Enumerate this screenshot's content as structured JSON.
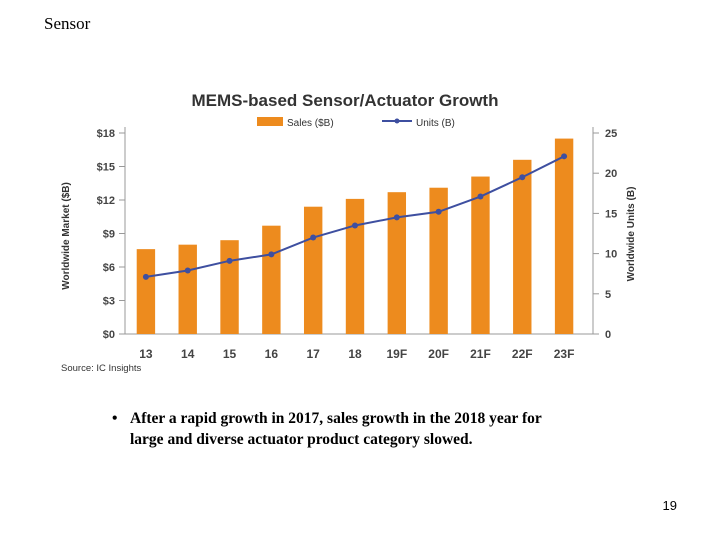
{
  "slide": {
    "heading": "Sensor",
    "bullet": "After a rapid growth in 2017, sales growth in the 2018 year for large and diverse actuator product category slowed.",
    "bullet_marker": "•",
    "page_number": "19"
  },
  "chart_data": {
    "type": "bar",
    "title": "MEMS-based Sensor/Actuator Growth",
    "categories": [
      "13",
      "14",
      "15",
      "16",
      "17",
      "18",
      "19F",
      "20F",
      "21F",
      "22F",
      "23F"
    ],
    "series": [
      {
        "name": "Sales ($B)",
        "type": "bar",
        "axis": "left",
        "color": "#ED8B1E",
        "values": [
          7.6,
          8.0,
          8.4,
          9.7,
          11.4,
          12.1,
          12.7,
          13.1,
          14.1,
          15.6,
          17.5
        ]
      },
      {
        "name": "Units (B)",
        "type": "line",
        "axis": "right",
        "color": "#3E4FA0",
        "values": [
          7.1,
          7.9,
          9.1,
          9.9,
          12.0,
          13.5,
          14.5,
          15.2,
          17.1,
          19.5,
          22.1
        ]
      }
    ],
    "ylabel": "Worldwide Market ($B)",
    "y2label": "Worldwide Units (B)",
    "ylim": [
      0,
      18
    ],
    "y2lim": [
      0,
      25
    ],
    "yticks": [
      "$0",
      "$3",
      "$6",
      "$9",
      "$12",
      "$15",
      "$18"
    ],
    "y2ticks": [
      "0",
      "5",
      "10",
      "15",
      "20",
      "25"
    ],
    "source": "Source: IC Insights",
    "legend_position": "top-center"
  }
}
